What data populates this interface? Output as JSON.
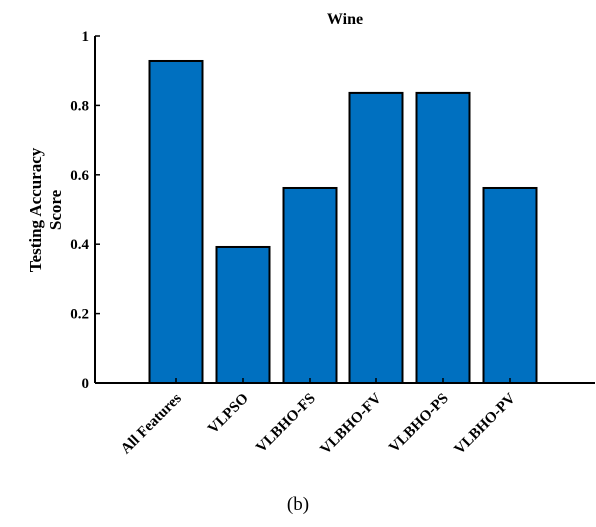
{
  "chart_data": {
    "type": "bar",
    "title": "Wine",
    "xlabel": "",
    "ylabel": [
      "Testing Accuracy",
      "Score"
    ],
    "categories": [
      "All Features",
      "VLPSO",
      "VLBHO-FS",
      "VLBHO-FV",
      "VLBHO-PS",
      "VLBHO-PV"
    ],
    "values": [
      0.928,
      0.392,
      0.562,
      0.836,
      0.836,
      0.562
    ],
    "ylim": [
      0,
      1
    ],
    "yticks": [
      "0",
      "0.2",
      "0.4",
      "0.6",
      "0.8",
      "1"
    ],
    "grid": false,
    "bar_color": "#0070c0",
    "bar_edge_color": "#000000"
  },
  "caption": "(b)"
}
